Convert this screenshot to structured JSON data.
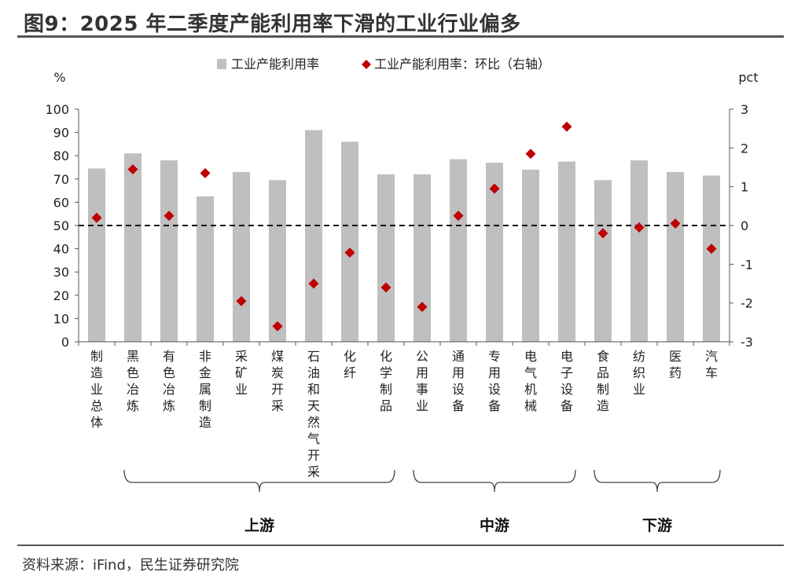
{
  "header": {
    "title": "图9：2025 年二季度产能利用率下滑的工业行业偏多"
  },
  "footer": {
    "source": "资料来源：iFind，民生证券研究院"
  },
  "chart_data": {
    "type": "bar",
    "title": "图9：2025 年二季度产能利用率下滑的工业行业偏多",
    "categories": [
      "制造业总体",
      "黑色冶炼",
      "有色冶炼",
      "非金属制造",
      "采矿业",
      "煤炭开采",
      "石油和天然气开采",
      "化纤",
      "化学制品",
      "公用事业",
      "通用设备",
      "专用设备",
      "电气机械",
      "电子设备",
      "食品制造",
      "纺织业",
      "医药",
      "汽车"
    ],
    "series": [
      {
        "name": "工业产能利用率",
        "type": "bar",
        "axis": "left",
        "color": "#bfbfbf",
        "values": [
          74.5,
          81,
          78,
          62.5,
          73,
          69.5,
          91,
          86,
          72,
          72,
          78.5,
          77,
          74,
          77.5,
          69.5,
          78,
          73,
          71.5
        ]
      },
      {
        "name": "工业产能利用率：环比（右轴）",
        "type": "scatter",
        "marker": "diamond",
        "axis": "right",
        "color": "#c00000",
        "values": [
          0.2,
          1.45,
          0.25,
          1.35,
          -1.95,
          -2.6,
          -1.5,
          -0.7,
          -1.6,
          -2.1,
          0.25,
          0.95,
          1.85,
          2.55,
          -0.2,
          -0.05,
          0.05,
          -0.6
        ]
      }
    ],
    "ylabel": "%",
    "ylabel_right": "pct",
    "ylim": [
      0,
      100
    ],
    "yticks": [
      0,
      10,
      20,
      30,
      40,
      50,
      60,
      70,
      80,
      90,
      100
    ],
    "ylim_right": [
      -3,
      3
    ],
    "yticks_right": [
      -3,
      -2,
      -1,
      0,
      1,
      2,
      3
    ],
    "reference_line": {
      "axis": "right",
      "value": 0,
      "style": "dashed"
    },
    "legend_position": "top",
    "grid": false,
    "groups": [
      {
        "label": "上游",
        "from": 1,
        "to": 8
      },
      {
        "label": "中游",
        "from": 9,
        "to": 13
      },
      {
        "label": "下游",
        "from": 14,
        "to": 17
      }
    ]
  }
}
